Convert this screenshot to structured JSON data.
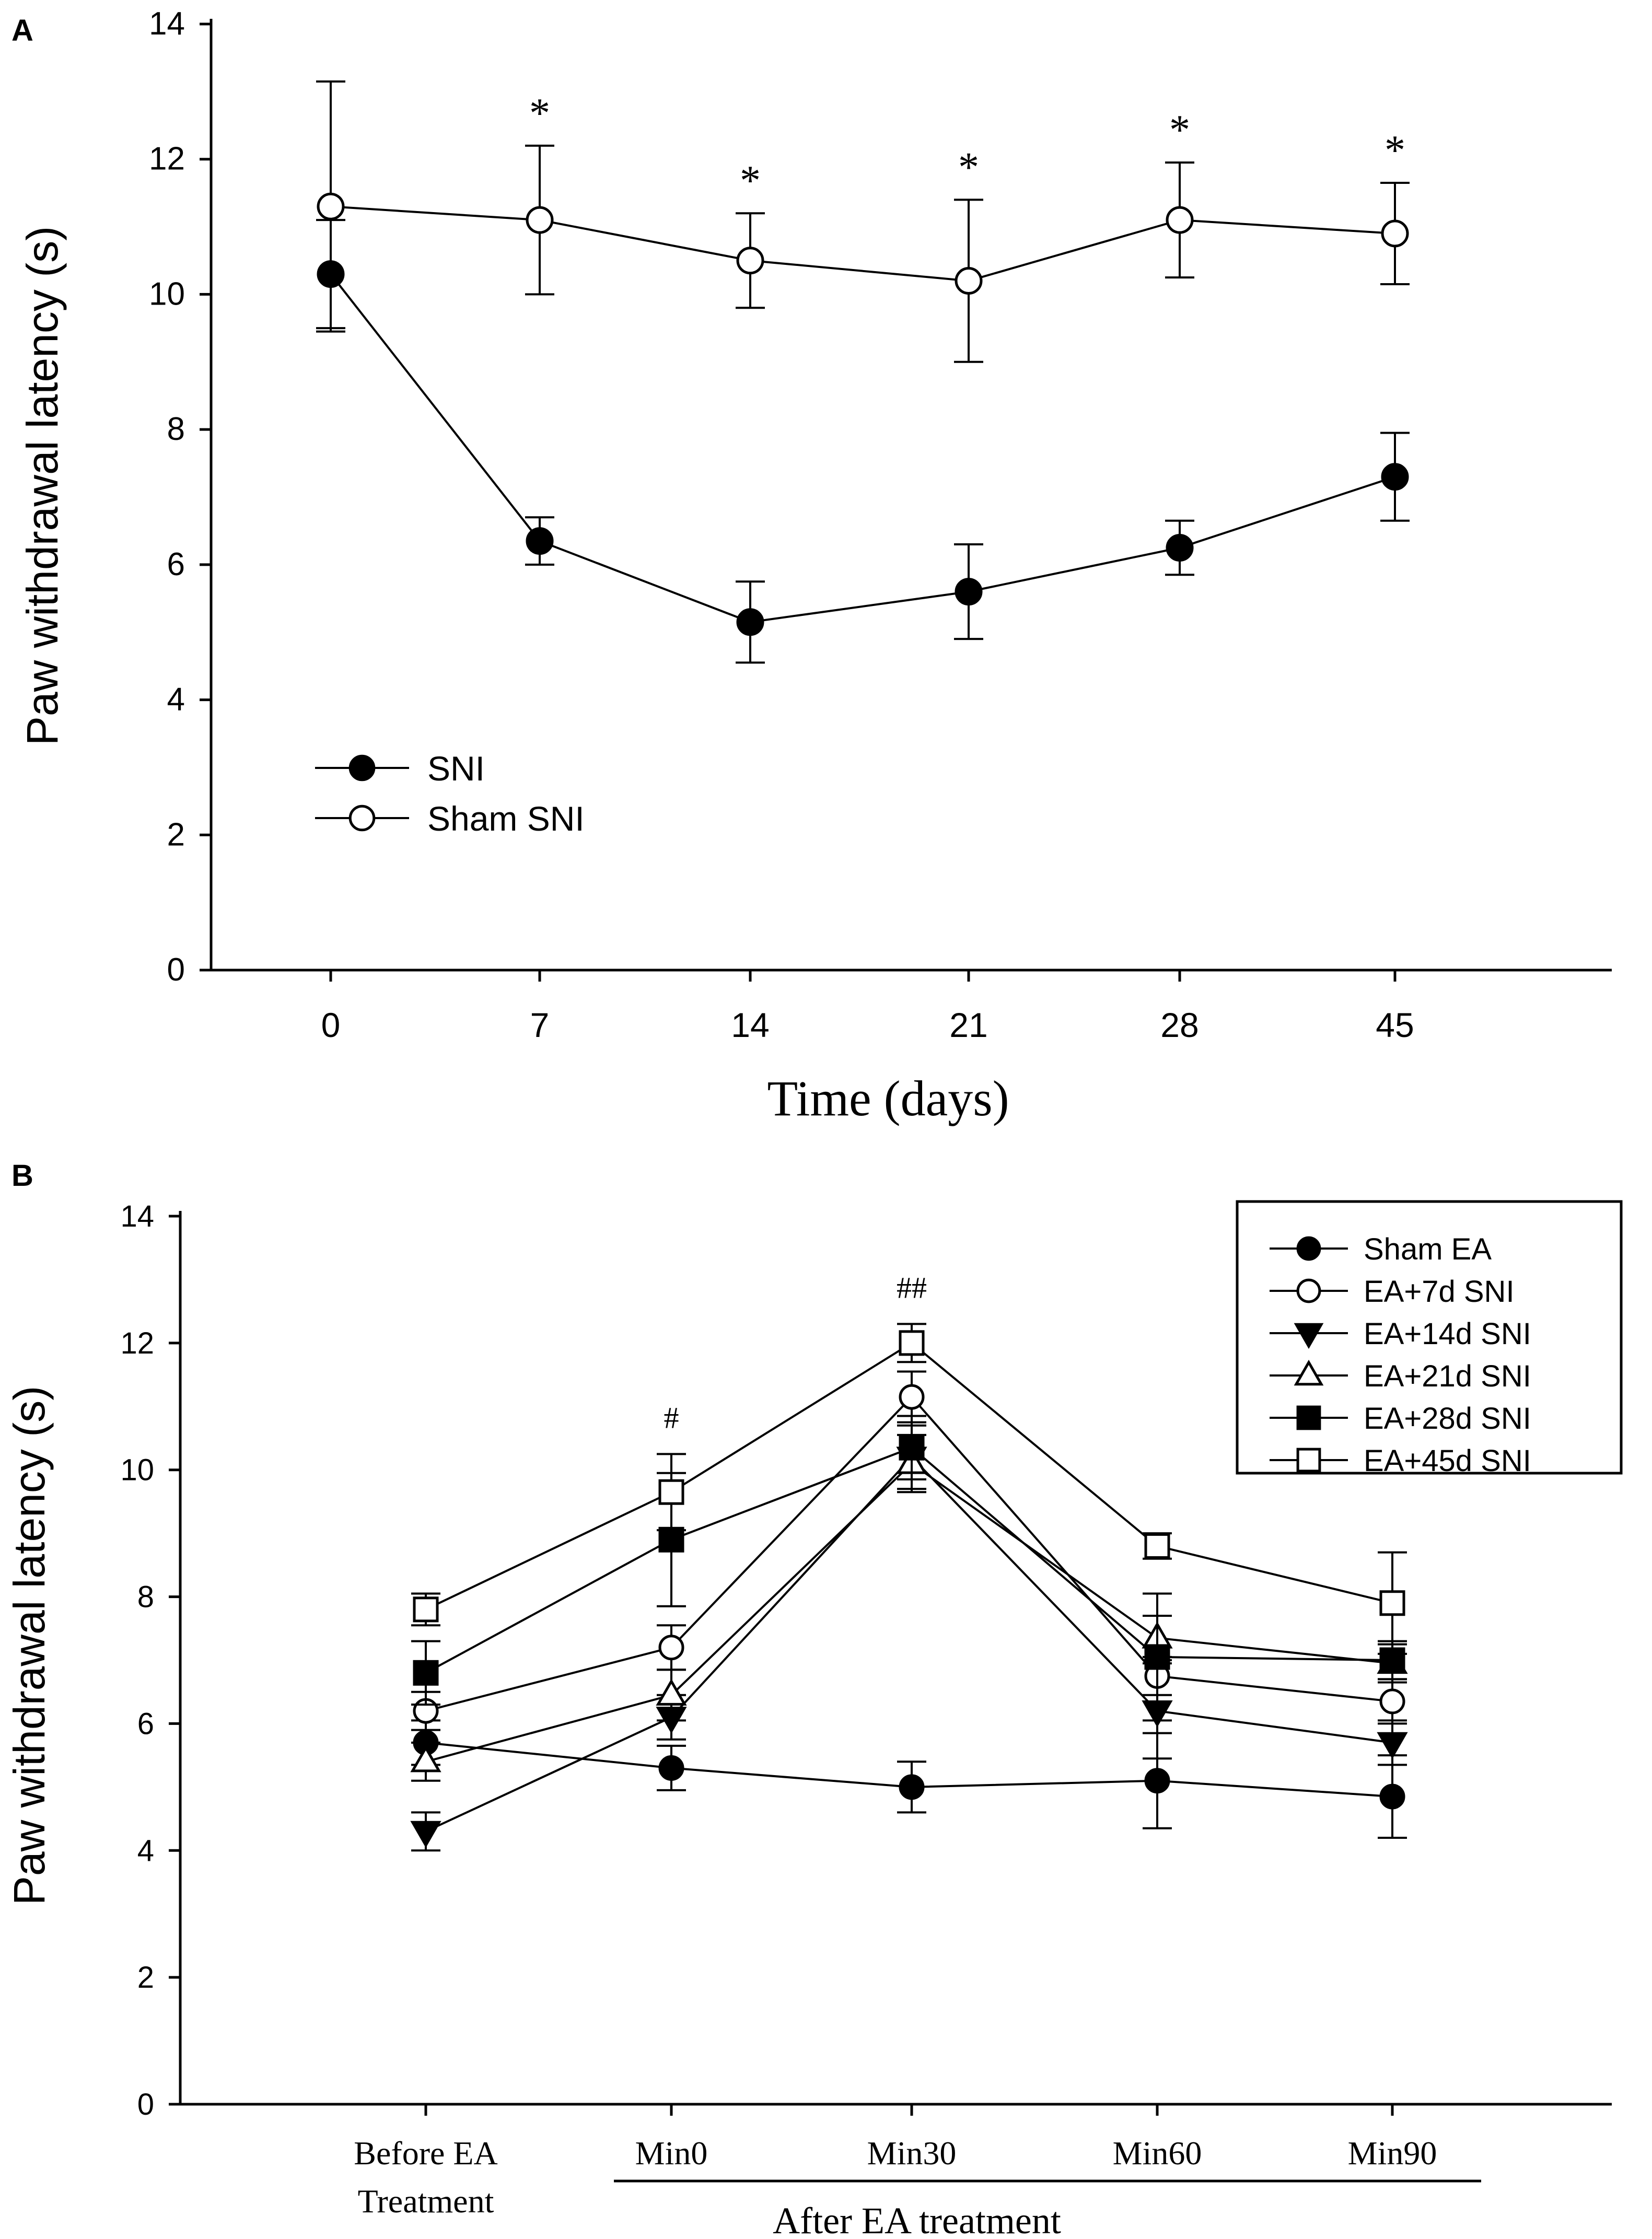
{
  "chart_data": [
    {
      "panel": "A",
      "type": "line",
      "title": "",
      "xlabel": "Time (days)",
      "ylabel": "Paw withdrawal latency (s)",
      "ylim": [
        0,
        14
      ],
      "yticks": [
        0,
        2,
        4,
        6,
        8,
        10,
        12,
        14
      ],
      "categories": [
        "0",
        "7",
        "14",
        "21",
        "28",
        "45"
      ],
      "legend_position": "lower-left",
      "series": [
        {
          "name": "SNI",
          "marker": "filled-circle",
          "values": [
            10.3,
            6.35,
            5.15,
            5.6,
            6.25,
            7.3
          ],
          "errors": [
            0.8,
            0.35,
            0.6,
            0.7,
            0.4,
            0.65
          ]
        },
        {
          "name": "Sham SNI",
          "marker": "open-circle",
          "values": [
            11.3,
            11.1,
            10.5,
            10.2,
            11.1,
            10.9
          ],
          "errors": [
            1.85,
            1.1,
            0.7,
            1.2,
            0.85,
            0.75
          ]
        }
      ],
      "annotations": [
        "",
        "*",
        "*",
        "*",
        "*",
        "*"
      ]
    },
    {
      "panel": "B",
      "type": "line",
      "title": "",
      "xlabel": "After EA treatment",
      "ylabel": "Paw withdrawal latency (s)",
      "ylim": [
        0,
        14
      ],
      "yticks": [
        0,
        2,
        4,
        6,
        8,
        10,
        12,
        14
      ],
      "categories": [
        "Before EA|Treatment",
        "Min0",
        "Min30",
        "Min60",
        "Min90"
      ],
      "legend_position": "top-right",
      "series": [
        {
          "name": "Sham EA",
          "marker": "filled-circle",
          "values": [
            5.7,
            5.3,
            5.0,
            5.1,
            4.85
          ],
          "errors": [
            0.35,
            0.35,
            0.4,
            0.75,
            0.65
          ]
        },
        {
          "name": "EA+7d SNI",
          "marker": "open-circle",
          "values": [
            6.2,
            7.2,
            11.15,
            6.75,
            6.35
          ],
          "errors": [
            0.3,
            0.35,
            0.4,
            0.3,
            0.35
          ]
        },
        {
          "name": "EA+14d SNI",
          "marker": "filled-triangle-down",
          "values": [
            4.3,
            6.1,
            10.2,
            6.2,
            5.7
          ],
          "errors": [
            0.3,
            0.35,
            0.5,
            0.75,
            0.35
          ]
        },
        {
          "name": "EA+21d SNI",
          "marker": "open-triangle-up",
          "values": [
            5.4,
            6.45,
            10.1,
            7.35,
            6.95
          ],
          "errors": [
            0.3,
            0.4,
            0.45,
            0.35,
            0.3
          ]
        },
        {
          "name": "EA+28d SNI",
          "marker": "filled-square",
          "values": [
            6.8,
            8.9,
            10.35,
            7.05,
            7.0
          ],
          "errors": [
            0.5,
            1.05,
            0.5,
            1.0,
            0.3
          ]
        },
        {
          "name": "EA+45d SNI",
          "marker": "open-square",
          "values": [
            7.8,
            9.65,
            12.0,
            8.8,
            7.9
          ],
          "errors": [
            0.25,
            0.6,
            0.3,
            0.2,
            0.8
          ]
        }
      ],
      "annotations": [
        "",
        "#",
        "##",
        "",
        ""
      ]
    }
  ]
}
